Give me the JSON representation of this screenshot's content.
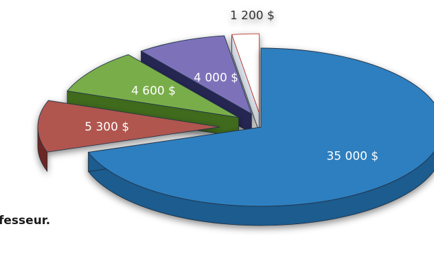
{
  "chart_data": {
    "type": "pie",
    "title": "",
    "style": "3d-exploded",
    "slices": [
      {
        "label": "35 000 $",
        "value": 35000,
        "color": "#2f7fbf",
        "side": "#1d5b8f"
      },
      {
        "label": "5 300 $",
        "value": 5300,
        "color": "#b0574f",
        "side": "#6e2620"
      },
      {
        "label": "4 600 $",
        "value": 4600,
        "color": "#79ad4a",
        "side": "#3f6a1e"
      },
      {
        "label": "4 000 $",
        "value": 4000,
        "color": "#7d72ba",
        "side": "#282653"
      },
      {
        "label": "1 200 $",
        "value": 1200,
        "color": "#ffffff",
        "side": "#d9dfe8"
      }
    ]
  },
  "caption": {
    "text": "fesseur."
  }
}
